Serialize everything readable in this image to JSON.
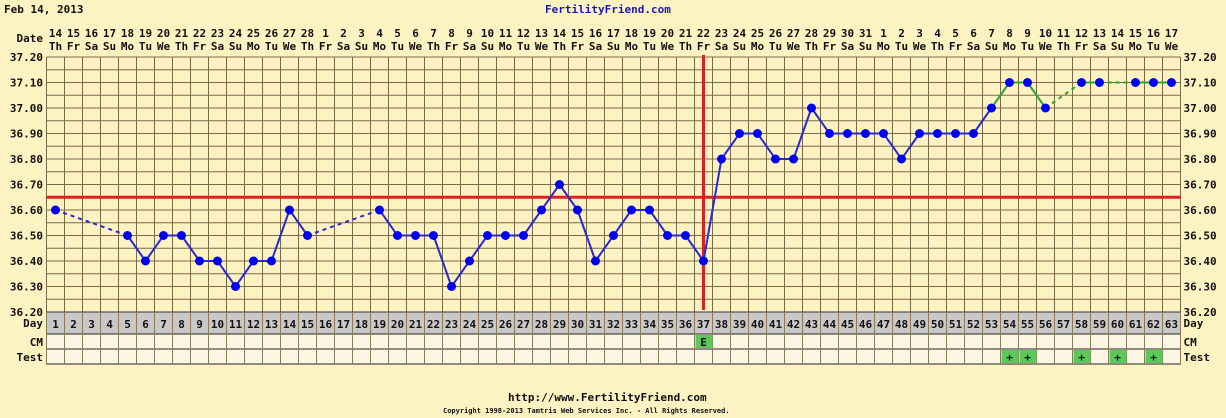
{
  "header": {
    "date": "Feb 14, 2013",
    "site_title": "FertilityFriend.com"
  },
  "footer": {
    "url": "http://www.FertilityFriend.com",
    "copyright": "Copyright 1998-2013 Tamtris Web Services Inc. - All Rights Reserved."
  },
  "colors": {
    "background": "#fdf2c2",
    "grid": "#7a6a4a",
    "line_pre": "#2a2ad0",
    "line_post": "#2aa82a",
    "point": "#0000ee",
    "coverline": "#e02020",
    "ovulation": "#e02020",
    "day_row": "#c8c8c8",
    "marker": "#5cc85c"
  },
  "chart_data": {
    "type": "line",
    "title": "",
    "row_labels": {
      "date": "Date",
      "day": "Day",
      "cm": "CM",
      "test": "Test"
    },
    "ylim": [
      36.2,
      37.2
    ],
    "yticks": [
      "36.20",
      "36.30",
      "36.40",
      "36.50",
      "36.60",
      "36.70",
      "36.80",
      "36.90",
      "37.00",
      "37.10",
      "37.20"
    ],
    "days": [
      1,
      2,
      3,
      4,
      5,
      6,
      7,
      8,
      9,
      10,
      11,
      12,
      13,
      14,
      15,
      16,
      17,
      18,
      19,
      20,
      21,
      22,
      23,
      24,
      25,
      26,
      27,
      28,
      29,
      30,
      31,
      32,
      33,
      34,
      35,
      36,
      37,
      38,
      39,
      40,
      41,
      42,
      43,
      44,
      45,
      46,
      47,
      48,
      49,
      50,
      51,
      52,
      53,
      54,
      55,
      56,
      57,
      58,
      59,
      60,
      61,
      62,
      63
    ],
    "dates": [
      14,
      15,
      16,
      17,
      18,
      19,
      20,
      21,
      22,
      23,
      24,
      25,
      26,
      27,
      28,
      1,
      2,
      3,
      4,
      5,
      6,
      7,
      8,
      9,
      10,
      11,
      12,
      13,
      14,
      15,
      16,
      17,
      18,
      19,
      20,
      21,
      22,
      23,
      24,
      25,
      26,
      27,
      28,
      29,
      30,
      31,
      1,
      2,
      3,
      4,
      5,
      6,
      7,
      8,
      9,
      10,
      11,
      12,
      13,
      14,
      15,
      16,
      17
    ],
    "weekdays": [
      "Th",
      "Fr",
      "Sa",
      "Su",
      "Mo",
      "Tu",
      "We",
      "Th",
      "Fr",
      "Sa",
      "Su",
      "Mo",
      "Tu",
      "We",
      "Th",
      "Fr",
      "Sa",
      "Su",
      "Mo",
      "Tu",
      "We",
      "Th",
      "Fr",
      "Sa",
      "Su",
      "Mo",
      "Tu",
      "We",
      "Th",
      "Fr",
      "Sa",
      "Su",
      "Mo",
      "Tu",
      "We",
      "Th",
      "Fr",
      "Sa",
      "Su",
      "Mo",
      "Tu",
      "We",
      "Th",
      "Fr",
      "Sa",
      "Su",
      "Mo",
      "Tu",
      "We",
      "Th",
      "Fr",
      "Sa",
      "Su",
      "Mo",
      "Tu",
      "We",
      "Th",
      "Fr",
      "Sa",
      "Su",
      "Mo",
      "Tu",
      "We"
    ],
    "temperatures": [
      36.6,
      null,
      null,
      null,
      36.5,
      36.4,
      36.5,
      36.5,
      36.4,
      36.4,
      36.3,
      36.4,
      36.4,
      36.6,
      36.5,
      null,
      null,
      null,
      36.6,
      36.5,
      36.5,
      36.5,
      36.3,
      36.4,
      36.5,
      36.5,
      36.5,
      36.6,
      36.7,
      36.6,
      36.4,
      36.5,
      36.6,
      36.6,
      36.5,
      36.5,
      36.4,
      36.8,
      36.9,
      36.9,
      36.8,
      36.8,
      37.0,
      36.9,
      36.9,
      36.9,
      36.9,
      36.8,
      36.9,
      36.9,
      36.9,
      36.9,
      37.0,
      37.1,
      37.1,
      37.0,
      null,
      37.1,
      37.1,
      null,
      37.1,
      37.1,
      37.1
    ],
    "line_color_change_day": 53,
    "coverline": 36.65,
    "ovulation_day": 37,
    "cm": [
      {
        "day": 37,
        "label": "E"
      }
    ],
    "tests": [
      {
        "day": 54,
        "label": "+"
      },
      {
        "day": 55,
        "label": "+"
      },
      {
        "day": 58,
        "label": "+"
      },
      {
        "day": 60,
        "label": "+"
      },
      {
        "day": 62,
        "label": "+"
      }
    ]
  }
}
